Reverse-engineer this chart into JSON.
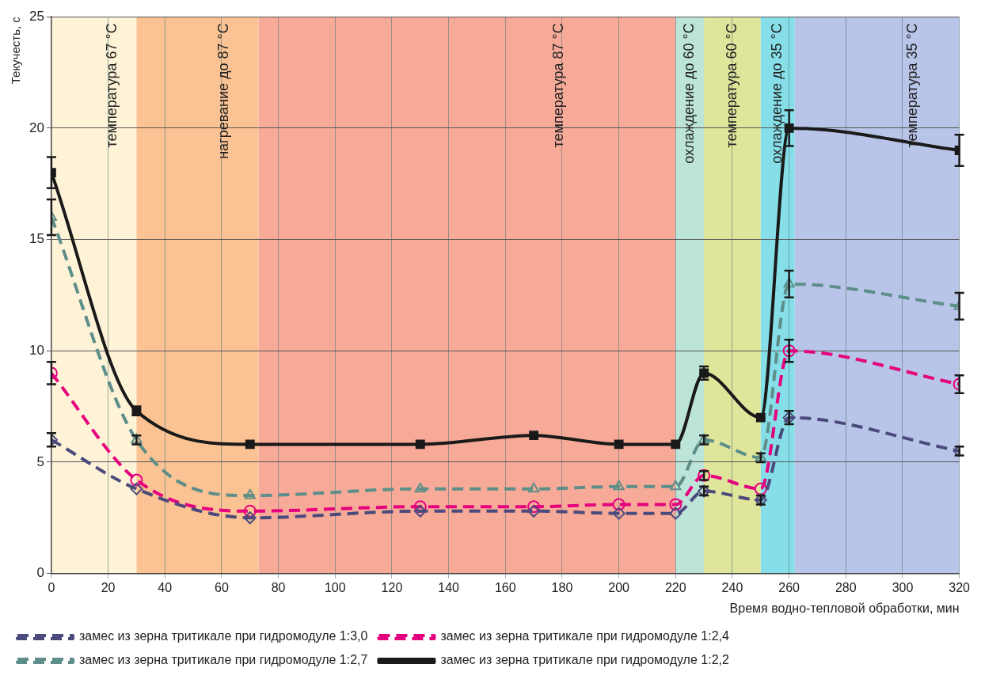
{
  "chart_data": {
    "type": "line",
    "xlabel": "Время водно-тепловой обработки, мин",
    "ylabel": "Текучесть, с",
    "x": [
      0,
      30,
      70,
      130,
      170,
      200,
      220,
      230,
      250,
      260,
      320
    ],
    "xlim": [
      0,
      320
    ],
    "xticks": [
      0,
      20,
      40,
      60,
      80,
      100,
      120,
      140,
      160,
      180,
      200,
      220,
      240,
      260,
      280,
      300,
      320
    ],
    "ylim": [
      0,
      25
    ],
    "yticks": [
      0,
      5,
      10,
      15,
      20,
      25
    ],
    "grid": true,
    "legend": "bottom",
    "series": [
      {
        "name": "замес из зерна тритикале при гидромодуле 1:3,0",
        "color": "#4b4a7c",
        "marker": "diamond",
        "line_style": "dashed",
        "values": [
          6,
          3.8,
          2.5,
          2.8,
          2.8,
          2.7,
          2.7,
          3.7,
          3.3,
          7,
          5.5
        ],
        "errors": [
          0.3,
          null,
          null,
          null,
          null,
          null,
          null,
          0.2,
          0.2,
          0.3,
          0.2
        ]
      },
      {
        "name": "замес из зерна тритикале при гидромодуле 1:2,4",
        "color": "#e5007d",
        "marker": "circle",
        "line_style": "dashed",
        "values": [
          9,
          4.2,
          2.8,
          3,
          3,
          3.1,
          3.1,
          4.4,
          3.8,
          10,
          8.5
        ],
        "errors": [
          0.5,
          null,
          null,
          null,
          null,
          null,
          null,
          0.2,
          null,
          0.5,
          0.4
        ]
      },
      {
        "name": "замес из зерна тритикале при гидромодуле 1:2,7",
        "color": "#5e8e89",
        "marker": "triangle",
        "line_style": "dashed",
        "values": [
          16,
          6,
          3.5,
          3.8,
          3.8,
          3.9,
          3.9,
          6,
          5.2,
          13,
          12
        ],
        "errors": [
          0.8,
          0.2,
          null,
          null,
          null,
          null,
          null,
          0.2,
          0.2,
          0.6,
          0.6
        ]
      },
      {
        "name": "замес из зерна тритикале при гидромодуле 1:2,2",
        "color": "#1a1a1a",
        "marker": "square",
        "line_style": "solid",
        "values": [
          18,
          7.3,
          5.8,
          5.8,
          6.2,
          5.8,
          5.8,
          9,
          7,
          20,
          19
        ],
        "errors": [
          0.7,
          0.2,
          null,
          null,
          null,
          null,
          null,
          0.3,
          null,
          0.8,
          0.7
        ]
      }
    ],
    "bands": [
      {
        "axis": "x",
        "from": 0,
        "to": 30,
        "label": "температура 67 °C",
        "color": "#fef3d6"
      },
      {
        "axis": "x",
        "from": 30,
        "to": 73,
        "label": "нагревание до 87 °C",
        "color": "#fbc394"
      },
      {
        "axis": "x",
        "from": 73,
        "to": 220,
        "label": "температура 87 °C",
        "color": "#f8aa98"
      },
      {
        "axis": "x",
        "from": 220,
        "to": 230,
        "label": "охлаждение до 60 °C",
        "color": "#bce4d8"
      },
      {
        "axis": "x",
        "from": 230,
        "to": 250,
        "label": "температура 60 °C",
        "color": "#dfe59a"
      },
      {
        "axis": "x",
        "from": 250,
        "to": 262,
        "label": "охлаждение до 35 °C",
        "color": "#86dfe8"
      },
      {
        "axis": "x",
        "from": 262,
        "to": 320,
        "label": "температура 35 °C",
        "color": "#b8c4e8"
      }
    ]
  }
}
